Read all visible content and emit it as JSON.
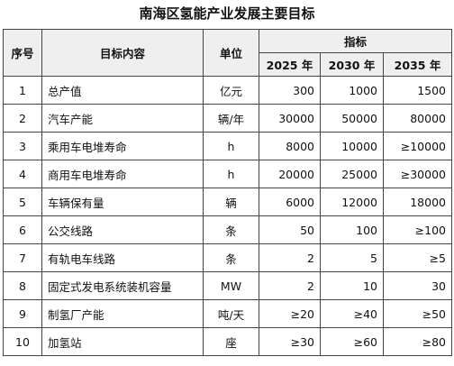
{
  "title": "南海区氢能产业发展主要目标",
  "table": {
    "header": {
      "index": "序号",
      "content": "目标内容",
      "unit": "单位",
      "indicator": "指标",
      "years": [
        "2025 年",
        "2030 年",
        "2035 年"
      ]
    },
    "rows": [
      [
        "1",
        "总产值",
        "亿元",
        "300",
        "1000",
        "1500"
      ],
      [
        "2",
        "汽车产能",
        "辆/年",
        "30000",
        "50000",
        "80000"
      ],
      [
        "3",
        "乘用车电堆寿命",
        "h",
        "8000",
        "10000",
        "≥10000"
      ],
      [
        "4",
        "商用车电堆寿命",
        "h",
        "20000",
        "25000",
        "≥30000"
      ],
      [
        "5",
        "车辆保有量",
        "辆",
        "6000",
        "12000",
        "18000"
      ],
      [
        "6",
        "公交线路",
        "条",
        "50",
        "100",
        "≥100"
      ],
      [
        "7",
        "有轨电车线路",
        "条",
        "2",
        "5",
        "≥5"
      ],
      [
        "8",
        "固定式发电系统装机容量",
        "MW",
        "2",
        "10",
        "30"
      ],
      [
        "9",
        "制氢厂产能",
        "吨/天",
        "≥20",
        "≥40",
        "≥50"
      ],
      [
        "10",
        "加氢站",
        "座",
        "≥30",
        "≥60",
        "≥80"
      ]
    ]
  }
}
